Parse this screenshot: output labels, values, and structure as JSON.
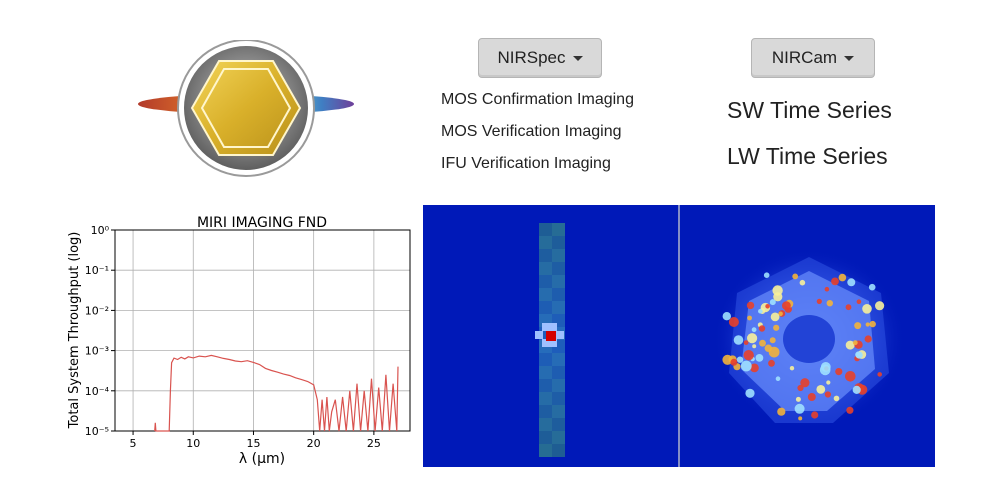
{
  "logo": {
    "name": "logo-icon"
  },
  "nirspec": {
    "button_label": "NIRSpec",
    "items": [
      {
        "label": "MOS Confirmation Imaging"
      },
      {
        "label": "MOS Verification Imaging"
      },
      {
        "label": "IFU Verification Imaging"
      }
    ]
  },
  "nircam": {
    "button_label": "NIRCam",
    "items": [
      {
        "label": "SW Time Series"
      },
      {
        "label": "LW Time Series"
      }
    ]
  },
  "chart_data": {
    "type": "line",
    "title": "MIRI IMAGING FND",
    "xlabel": "λ (μm)",
    "ylabel": "Total System Throughput (log)",
    "xlim": [
      3.5,
      28
    ],
    "ylim": [
      1e-05,
      1
    ],
    "yscale": "log",
    "grid": true,
    "xticks": [
      "5",
      "10",
      "15",
      "20",
      "25"
    ],
    "yticks": [
      "10⁻⁵",
      "10⁻⁴",
      "10⁻³",
      "10⁻²",
      "10⁻¹",
      "10⁰"
    ],
    "series": [
      {
        "color": "#d9534f",
        "x": [
          6.8,
          6.85,
          6.9,
          8.0,
          8.1,
          8.2,
          8.4,
          8.7,
          9.0,
          9.3,
          9.6,
          10.0,
          10.5,
          11.0,
          11.5,
          12.0,
          12.5,
          13.0,
          13.5,
          14.0,
          14.5,
          15.0,
          15.5,
          16.0,
          16.5,
          17.0,
          17.5,
          18.0,
          18.5,
          19.0,
          19.5,
          20.0,
          20.3,
          20.5,
          20.7,
          20.9,
          21.1,
          21.3,
          21.5,
          21.8,
          22.1,
          22.4,
          22.7,
          23.0,
          23.3,
          23.6,
          23.9,
          24.2,
          24.5,
          24.8,
          25.1,
          25.4,
          25.7,
          26.0,
          26.3,
          26.6,
          26.9,
          27.0
        ],
        "y": [
          1e-05,
          1.6e-05,
          1e-05,
          1e-05,
          0.0001,
          0.0005,
          0.00065,
          0.0006,
          0.00068,
          0.00062,
          0.0007,
          0.00066,
          0.00073,
          0.0007,
          0.00076,
          0.0007,
          0.00064,
          0.0006,
          0.00055,
          0.00053,
          0.00056,
          0.00051,
          0.00045,
          0.00036,
          0.00032,
          0.00029,
          0.00026,
          0.00024,
          0.00021,
          0.00019,
          0.00017,
          0.00014,
          6e-05,
          1e-05,
          6e-05,
          1e-05,
          7e-05,
          1e-05,
          3e-05,
          6e-05,
          1e-05,
          7e-05,
          1e-05,
          0.0001,
          1e-05,
          0.00015,
          1e-05,
          0.0001,
          1e-05,
          0.0002,
          1e-05,
          0.00012,
          1e-05,
          0.00025,
          1e-05,
          0.00015,
          1e-05,
          0.0004
        ]
      }
    ]
  }
}
